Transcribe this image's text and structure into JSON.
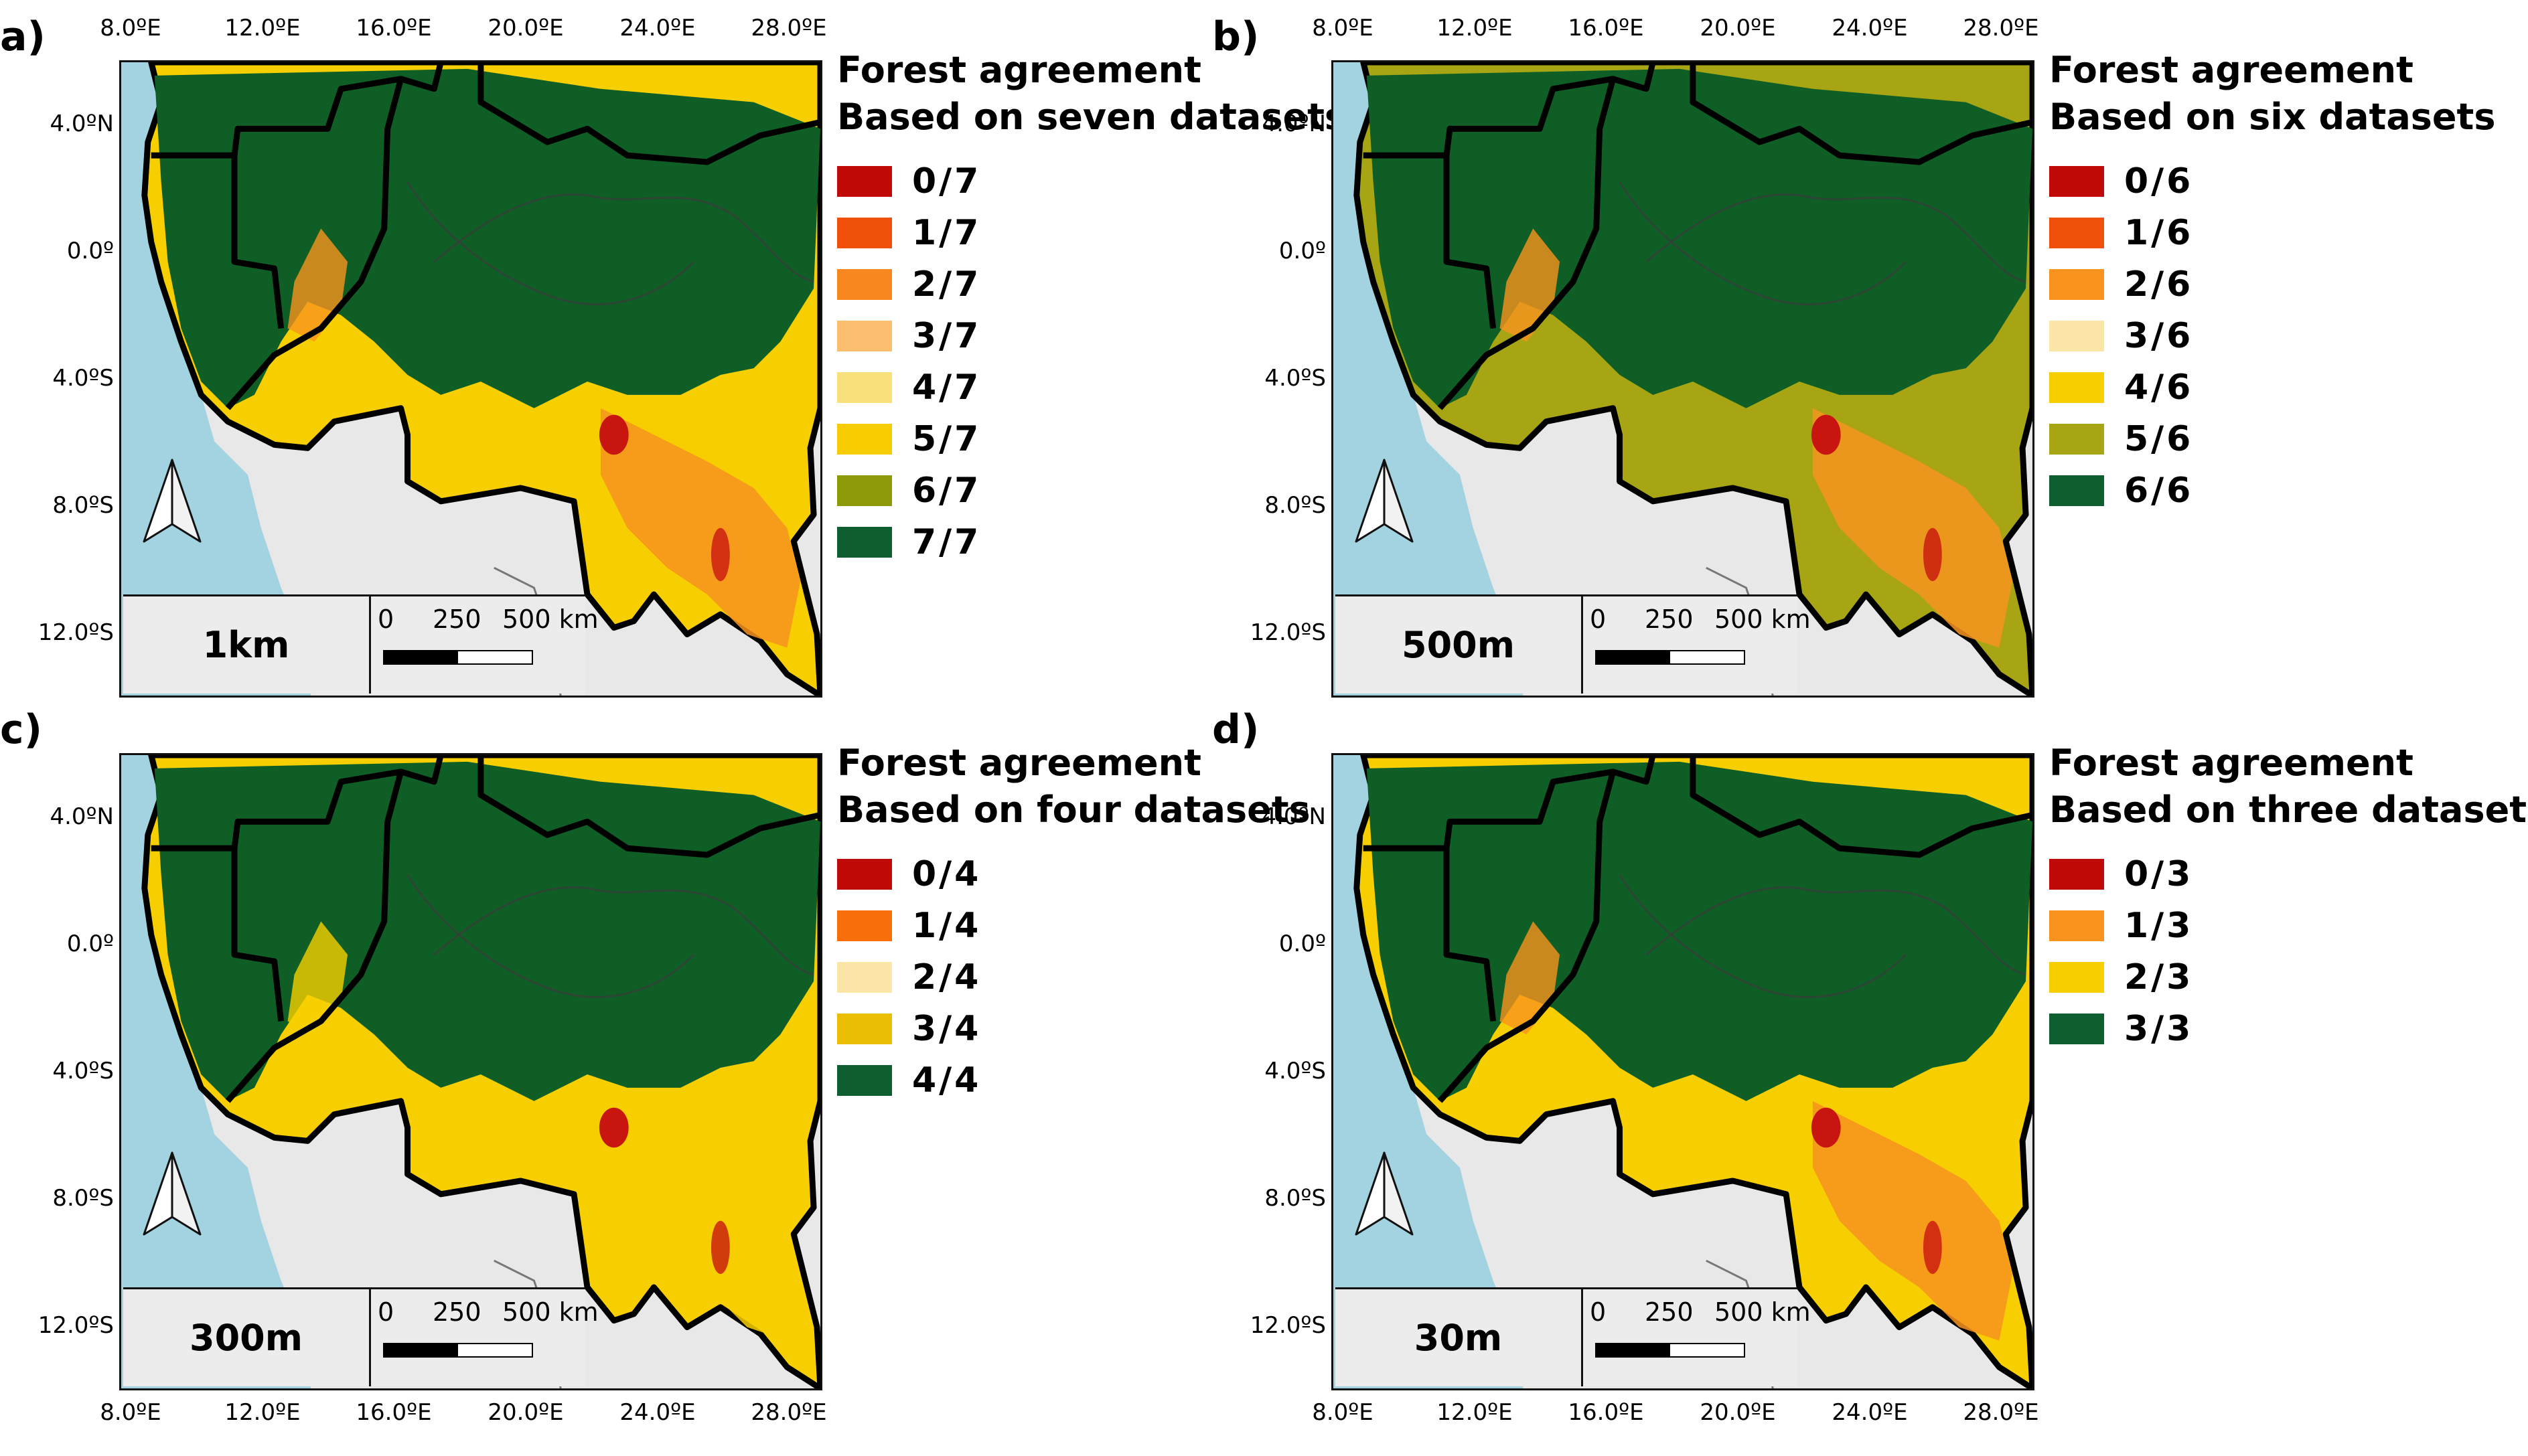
{
  "axes": {
    "x_ticks": [
      "8.0ºE",
      "12.0ºE",
      "16.0ºE",
      "20.0ºE",
      "24.0ºE",
      "28.0ºE"
    ],
    "y_ticks": [
      "4.0ºN",
      "0.0º",
      "4.0ºS",
      "8.0ºS",
      "12.0ºS"
    ]
  },
  "colors": {
    "ocean": "#a3d3e0",
    "land_outside": "#e8e8e8",
    "forest": "#0f5e26",
    "red": "#c8150f",
    "orange": "#f7931e",
    "yellow": "#f7cf00",
    "olive": "#a7a514"
  },
  "scale_bar": {
    "label_0": "0",
    "label_250": "250",
    "label_500": "500 km"
  },
  "panels": [
    {
      "letter": "a)",
      "resolution": "1km",
      "legend_title_1": "Forest agreement",
      "legend_title_2": "Based on seven datasets",
      "legend": [
        {
          "label": "0/7",
          "color": "#c00a0a"
        },
        {
          "label": "1/7",
          "color": "#f0500a"
        },
        {
          "label": "2/7",
          "color": "#f7871e"
        },
        {
          "label": "3/7",
          "color": "#fbbd6e"
        },
        {
          "label": "4/7",
          "color": "#f8e07a"
        },
        {
          "label": "5/7",
          "color": "#f7cc00"
        },
        {
          "label": "6/7",
          "color": "#8d9a0a"
        },
        {
          "label": "7/7",
          "color": "#0f5e2f"
        }
      ]
    },
    {
      "letter": "b)",
      "resolution": "500m",
      "legend_title_1": "Forest agreement",
      "legend_title_2": "Based on six datasets",
      "legend": [
        {
          "label": "0/6",
          "color": "#c00a0a"
        },
        {
          "label": "1/6",
          "color": "#f0500a"
        },
        {
          "label": "2/6",
          "color": "#f7931e"
        },
        {
          "label": "3/6",
          "color": "#fbe6a8"
        },
        {
          "label": "4/6",
          "color": "#f7cf00"
        },
        {
          "label": "5/6",
          "color": "#a7a514"
        },
        {
          "label": "6/6",
          "color": "#0f5e2f"
        }
      ]
    },
    {
      "letter": "c)",
      "resolution": "300m",
      "legend_title_1": "Forest agreement",
      "legend_title_2": "Based on four datasets",
      "legend": [
        {
          "label": "0/4",
          "color": "#c00a0a"
        },
        {
          "label": "1/4",
          "color": "#f76e0a"
        },
        {
          "label": "2/4",
          "color": "#fbe6a8"
        },
        {
          "label": "3/4",
          "color": "#e9be05"
        },
        {
          "label": "4/4",
          "color": "#0f5e2f"
        }
      ]
    },
    {
      "letter": "d)",
      "resolution": "30m",
      "legend_title_1": "Forest agreement",
      "legend_title_2": "Based on three datasets",
      "legend": [
        {
          "label": "0/3",
          "color": "#c00a0a"
        },
        {
          "label": "1/3",
          "color": "#f7931e"
        },
        {
          "label": "2/3",
          "color": "#f7cf00"
        },
        {
          "label": "3/3",
          "color": "#0f5e2f"
        }
      ]
    }
  ]
}
